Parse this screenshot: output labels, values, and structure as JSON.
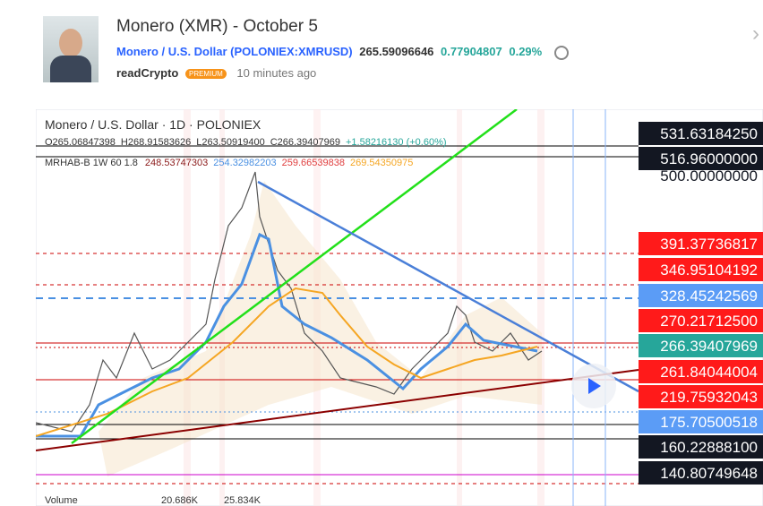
{
  "header": {
    "title": "Monero (XMR) - October 5",
    "symbol_name": "Monero / U.S. Dollar",
    "symbol_code": "(POLONIEX:XMRUSD)",
    "price": "265.59096646",
    "change": "0.77904807",
    "change_pct": "0.29%",
    "author": "readCrypto",
    "badge": "PREMIUM",
    "time": "10 minutes ago"
  },
  "chart": {
    "title": "Monero / U.S. Dollar · 1D · POLONIEX",
    "ohlc": [
      "O265.06847398",
      "H268.91583626",
      "L263.50919400",
      "C266.39407969",
      "+1.58216130 (+0.60%)"
    ],
    "indicator": {
      "name": "MRHAB-B 1W 60 1.8",
      "values": [
        {
          "text": "248.53747303",
          "color": "#8b1a1a"
        },
        {
          "text": "254.32982203",
          "color": "#4a90e2"
        },
        {
          "text": "259.66539838",
          "color": "#e04040"
        },
        {
          "text": "269.54350975",
          "color": "#f5a623"
        }
      ]
    },
    "price_labels": [
      {
        "text": "531.63184250",
        "color": "#131722"
      },
      {
        "text": "516.96000000",
        "color": "#131722"
      },
      {
        "text": "500.00000000",
        "color": "#ffffff"
      },
      {
        "text": "391.37736817",
        "color": "#ff1a1a"
      },
      {
        "text": "346.95104192",
        "color": "#ff1a1a"
      },
      {
        "text": "328.45242569",
        "color": "#5b9cf6"
      },
      {
        "text": "270.21712500",
        "color": "#ff1a1a"
      },
      {
        "text": "266.39407969",
        "color": "#26a69a"
      },
      {
        "text": "261.84044004",
        "color": "#ff1a1a"
      },
      {
        "text": "219.75932043",
        "color": "#ff1a1a"
      },
      {
        "text": "175.70500518",
        "color": "#5b9cf6"
      },
      {
        "text": "160.22888100",
        "color": "#131722"
      },
      {
        "text": "140.80749648",
        "color": "#131722"
      }
    ],
    "volume": [
      "Volume",
      "20.686K",
      "25.834K"
    ]
  }
}
